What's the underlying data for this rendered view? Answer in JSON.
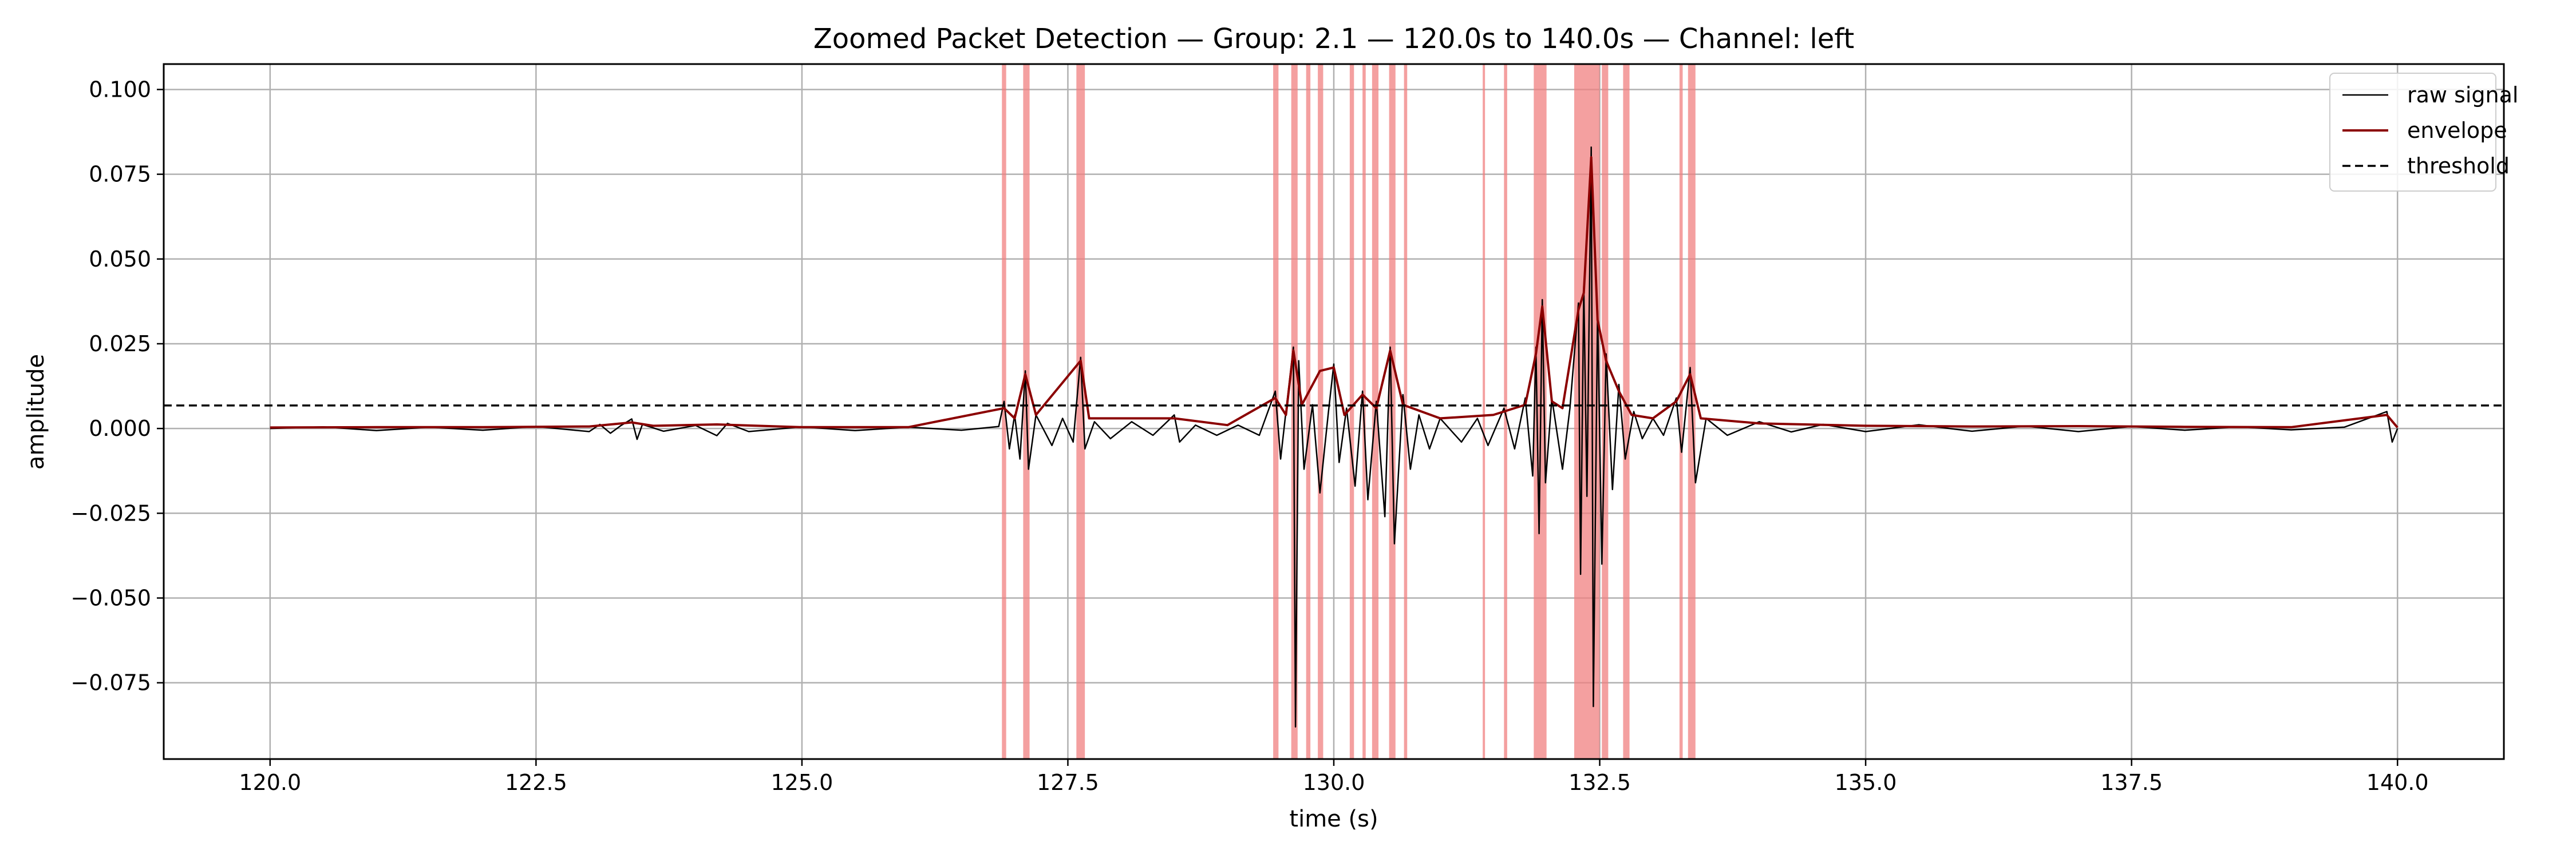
{
  "chart_data": {
    "type": "line",
    "title": "Zoomed Packet Detection — Group: 2.1 — 120.0s to 140.0s — Channel: left",
    "xlabel": "time (s)",
    "ylabel": "amplitude",
    "xlim": [
      119.0,
      141.0
    ],
    "ylim": [
      -0.0975,
      0.1075
    ],
    "xticks": [
      120.0,
      122.5,
      125.0,
      127.5,
      130.0,
      132.5,
      135.0,
      137.5,
      140.0
    ],
    "xtick_labels": [
      "120.0",
      "122.5",
      "125.0",
      "127.5",
      "130.0",
      "132.5",
      "135.0",
      "137.5",
      "140.0"
    ],
    "yticks": [
      0.1,
      0.075,
      0.05,
      0.025,
      0.0,
      -0.025,
      -0.05,
      -0.075
    ],
    "ytick_labels": [
      "0.100",
      "0.075",
      "0.050",
      "0.025",
      "0.000",
      "−0.025",
      "−0.050",
      "−0.075"
    ],
    "grid": true,
    "legend_position": "top-right",
    "threshold": 0.0068,
    "colors": {
      "raw": "#000000",
      "envelope": "#8b0000",
      "threshold": "#000000",
      "detection": "#f08080",
      "grid": "#b0b0b0"
    },
    "series": [
      {
        "name": "raw signal",
        "role": "raw",
        "points": [
          [
            120.0,
            0.0
          ],
          [
            120.5,
            0.0005
          ],
          [
            121.0,
            -0.0006
          ],
          [
            121.5,
            0.0004
          ],
          [
            122.0,
            -0.0005
          ],
          [
            122.5,
            0.0006
          ],
          [
            123.0,
            -0.0009
          ],
          [
            123.1,
            0.0012
          ],
          [
            123.2,
            -0.0014
          ],
          [
            123.3,
            0.0009
          ],
          [
            123.4,
            0.0028
          ],
          [
            123.45,
            -0.0032
          ],
          [
            123.5,
            0.0012
          ],
          [
            123.7,
            -0.0008
          ],
          [
            124.0,
            0.0009
          ],
          [
            124.2,
            -0.0021
          ],
          [
            124.3,
            0.0015
          ],
          [
            124.5,
            -0.0009
          ],
          [
            125.0,
            0.0005
          ],
          [
            125.5,
            -0.0006
          ],
          [
            126.0,
            0.0004
          ],
          [
            126.5,
            -0.0005
          ],
          [
            126.85,
            0.0006
          ],
          [
            126.9,
            0.008
          ],
          [
            126.95,
            -0.006
          ],
          [
            127.0,
            0.004
          ],
          [
            127.05,
            -0.009
          ],
          [
            127.1,
            0.017
          ],
          [
            127.13,
            -0.012
          ],
          [
            127.2,
            0.004
          ],
          [
            127.35,
            -0.005
          ],
          [
            127.45,
            0.003
          ],
          [
            127.55,
            -0.004
          ],
          [
            127.62,
            0.021
          ],
          [
            127.66,
            -0.006
          ],
          [
            127.75,
            0.002
          ],
          [
            127.9,
            -0.003
          ],
          [
            128.1,
            0.002
          ],
          [
            128.3,
            -0.002
          ],
          [
            128.5,
            0.004
          ],
          [
            128.55,
            -0.004
          ],
          [
            128.7,
            0.001
          ],
          [
            128.9,
            -0.002
          ],
          [
            129.1,
            0.001
          ],
          [
            129.3,
            -0.002
          ],
          [
            129.45,
            0.011
          ],
          [
            129.5,
            -0.009
          ],
          [
            129.55,
            0.005
          ],
          [
            129.62,
            0.024
          ],
          [
            129.64,
            -0.088
          ],
          [
            129.67,
            0.02
          ],
          [
            129.72,
            -0.012
          ],
          [
            129.8,
            0.007
          ],
          [
            129.87,
            -0.019
          ],
          [
            129.95,
            0.005
          ],
          [
            130.0,
            0.019
          ],
          [
            130.05,
            -0.01
          ],
          [
            130.12,
            0.006
          ],
          [
            130.2,
            -0.017
          ],
          [
            130.27,
            0.011
          ],
          [
            130.32,
            -0.021
          ],
          [
            130.4,
            0.008
          ],
          [
            130.48,
            -0.026
          ],
          [
            130.53,
            0.024
          ],
          [
            130.57,
            -0.034
          ],
          [
            130.65,
            0.01
          ],
          [
            130.72,
            -0.012
          ],
          [
            130.8,
            0.004
          ],
          [
            130.9,
            -0.006
          ],
          [
            131.0,
            0.003
          ],
          [
            131.2,
            -0.004
          ],
          [
            131.35,
            0.003
          ],
          [
            131.45,
            -0.005
          ],
          [
            131.6,
            0.006
          ],
          [
            131.7,
            -0.006
          ],
          [
            131.8,
            0.009
          ],
          [
            131.87,
            -0.014
          ],
          [
            131.9,
            0.024
          ],
          [
            131.93,
            -0.031
          ],
          [
            131.96,
            0.038
          ],
          [
            131.99,
            -0.016
          ],
          [
            132.05,
            0.009
          ],
          [
            132.15,
            -0.012
          ],
          [
            132.22,
            0.006
          ],
          [
            132.3,
            0.037
          ],
          [
            132.32,
            -0.043
          ],
          [
            132.35,
            0.042
          ],
          [
            132.38,
            -0.02
          ],
          [
            132.42,
            0.083
          ],
          [
            132.44,
            -0.082
          ],
          [
            132.48,
            0.035
          ],
          [
            132.52,
            -0.04
          ],
          [
            132.56,
            0.022
          ],
          [
            132.62,
            -0.018
          ],
          [
            132.68,
            0.013
          ],
          [
            132.74,
            -0.009
          ],
          [
            132.82,
            0.005
          ],
          [
            132.9,
            -0.003
          ],
          [
            133.0,
            0.003
          ],
          [
            133.1,
            -0.002
          ],
          [
            133.22,
            0.009
          ],
          [
            133.27,
            -0.007
          ],
          [
            133.35,
            0.018
          ],
          [
            133.4,
            -0.016
          ],
          [
            133.5,
            0.003
          ],
          [
            133.7,
            -0.002
          ],
          [
            134.0,
            0.002
          ],
          [
            134.3,
            -0.001
          ],
          [
            134.6,
            0.0012
          ],
          [
            135.0,
            -0.0009
          ],
          [
            135.5,
            0.0011
          ],
          [
            136.0,
            -0.0008
          ],
          [
            136.5,
            0.0007
          ],
          [
            137.0,
            -0.0009
          ],
          [
            137.5,
            0.0006
          ],
          [
            138.0,
            -0.0005
          ],
          [
            138.5,
            0.0005
          ],
          [
            139.0,
            -0.0004
          ],
          [
            139.5,
            0.0004
          ],
          [
            139.9,
            0.005
          ],
          [
            139.95,
            -0.004
          ],
          [
            140.0,
            0.0
          ]
        ]
      },
      {
        "name": "envelope",
        "role": "envelope",
        "points": [
          [
            120.0,
            0.0003
          ],
          [
            121.0,
            0.0004
          ],
          [
            122.0,
            0.0004
          ],
          [
            123.0,
            0.0006
          ],
          [
            123.4,
            0.0018
          ],
          [
            123.6,
            0.0008
          ],
          [
            124.2,
            0.0012
          ],
          [
            125.0,
            0.0004
          ],
          [
            126.0,
            0.0004
          ],
          [
            126.9,
            0.006
          ],
          [
            127.0,
            0.003
          ],
          [
            127.1,
            0.016
          ],
          [
            127.2,
            0.004
          ],
          [
            127.62,
            0.02
          ],
          [
            127.7,
            0.003
          ],
          [
            128.5,
            0.003
          ],
          [
            129.0,
            0.001
          ],
          [
            129.45,
            0.009
          ],
          [
            129.55,
            0.004
          ],
          [
            129.62,
            0.023
          ],
          [
            129.7,
            0.007
          ],
          [
            129.87,
            0.017
          ],
          [
            130.0,
            0.018
          ],
          [
            130.1,
            0.004
          ],
          [
            130.27,
            0.01
          ],
          [
            130.4,
            0.006
          ],
          [
            130.53,
            0.023
          ],
          [
            130.65,
            0.007
          ],
          [
            131.0,
            0.003
          ],
          [
            131.5,
            0.004
          ],
          [
            131.8,
            0.007
          ],
          [
            131.9,
            0.022
          ],
          [
            131.96,
            0.036
          ],
          [
            132.05,
            0.008
          ],
          [
            132.15,
            0.006
          ],
          [
            132.3,
            0.035
          ],
          [
            132.35,
            0.04
          ],
          [
            132.42,
            0.08
          ],
          [
            132.48,
            0.032
          ],
          [
            132.56,
            0.02
          ],
          [
            132.68,
            0.011
          ],
          [
            132.8,
            0.004
          ],
          [
            133.0,
            0.003
          ],
          [
            133.22,
            0.008
          ],
          [
            133.35,
            0.016
          ],
          [
            133.45,
            0.003
          ],
          [
            134.0,
            0.0015
          ],
          [
            135.0,
            0.0008
          ],
          [
            136.0,
            0.0006
          ],
          [
            137.0,
            0.0007
          ],
          [
            138.0,
            0.0005
          ],
          [
            139.0,
            0.0004
          ],
          [
            139.9,
            0.004
          ],
          [
            140.0,
            0.0003
          ]
        ]
      },
      {
        "name": "threshold",
        "role": "threshold",
        "style": "dashed"
      }
    ],
    "detections": [
      {
        "start": 126.88,
        "end": 126.92
      },
      {
        "start": 127.08,
        "end": 127.14
      },
      {
        "start": 127.58,
        "end": 127.66
      },
      {
        "start": 129.43,
        "end": 129.48
      },
      {
        "start": 129.6,
        "end": 129.66
      },
      {
        "start": 129.74,
        "end": 129.78
      },
      {
        "start": 129.85,
        "end": 129.9
      },
      {
        "start": 130.15,
        "end": 130.19
      },
      {
        "start": 130.27,
        "end": 130.3
      },
      {
        "start": 130.36,
        "end": 130.42
      },
      {
        "start": 130.52,
        "end": 130.58
      },
      {
        "start": 130.66,
        "end": 130.69
      },
      {
        "start": 131.4,
        "end": 131.42
      },
      {
        "start": 131.6,
        "end": 131.63
      },
      {
        "start": 131.88,
        "end": 132.0
      },
      {
        "start": 132.26,
        "end": 132.5
      },
      {
        "start": 132.52,
        "end": 132.58
      },
      {
        "start": 132.72,
        "end": 132.78
      },
      {
        "start": 133.25,
        "end": 133.28
      },
      {
        "start": 133.33,
        "end": 133.4
      }
    ]
  }
}
